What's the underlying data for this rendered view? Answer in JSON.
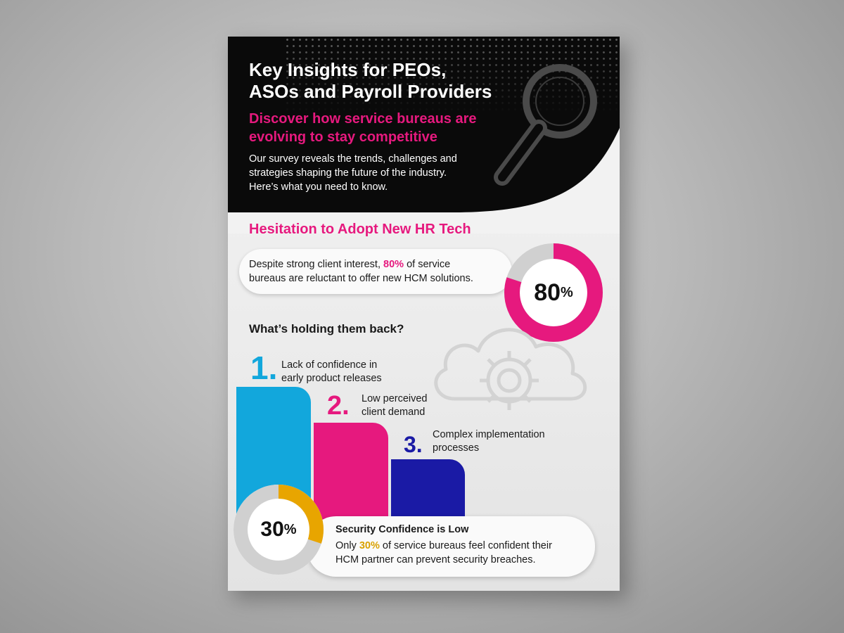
{
  "hero": {
    "title_line1": "Key Insights for PEOs,",
    "title_line2": "ASOs and Payroll Providers",
    "subtitle_line1": "Discover how service bureaus are",
    "subtitle_line2": "evolving to stay competitive",
    "body_line1": "Our survey reveals the trends, challenges and",
    "body_line2": "strategies shaping the future of the industry.",
    "body_line3": "Here’s what you need to know.",
    "decoration_icon": "magnifier-icon"
  },
  "hesitation": {
    "title": "Hesitation to Adopt New HR Tech",
    "text_before": "Despite strong client interest,",
    "highlight": "80%",
    "text_line1_end": "of service",
    "text_line2": "bureaus are reluctant to offer new HCM solutions.",
    "donut_number": "80",
    "donut_sign": "%",
    "donut_value": 80
  },
  "holding_back": {
    "question": "What’s holding them back?",
    "background_icon": "cloud-gear-icon",
    "reasons": [
      {
        "rank": "1.",
        "line1": "Lack of confidence in",
        "line2": "early product releases"
      },
      {
        "rank": "2.",
        "line1": "Low perceived",
        "line2": "client demand"
      },
      {
        "rank": "3.",
        "line1": "Complex implementation",
        "line2": "processes"
      }
    ]
  },
  "security": {
    "title": "Security Confidence is Low",
    "text_before": "Only",
    "highlight": "30%",
    "text_line1_end": "of service bureaus feel confident their",
    "text_line2": "HCM partner can prevent security breaches.",
    "donut_number": "30",
    "donut_sign": "%",
    "donut_value": 30
  },
  "colors": {
    "pink": "#e6197e",
    "cyan": "#12a7dc",
    "navy": "#1a1aa5",
    "gold": "#e8a500",
    "track": "#d0d0d0",
    "hero_bg": "#0a0a0a"
  }
}
